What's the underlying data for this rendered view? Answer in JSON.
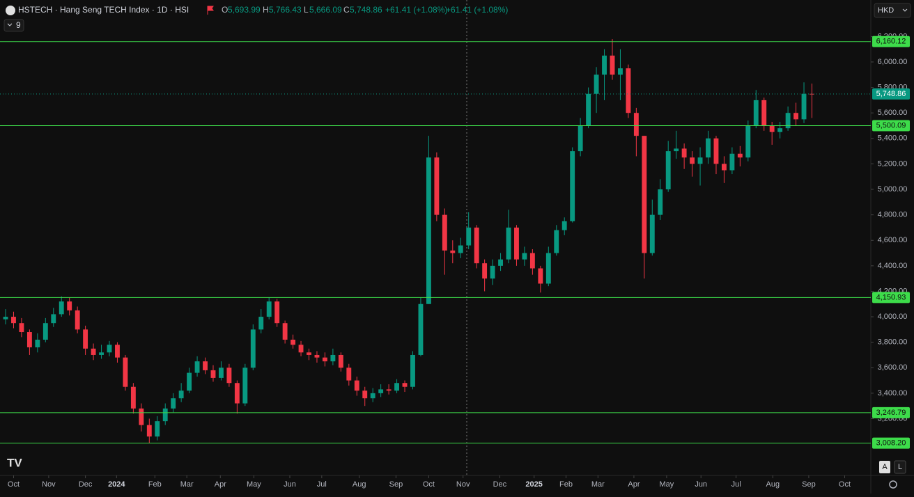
{
  "header": {
    "symbol": "HSTECH · Hang Seng TECH Index · 1D · HSI",
    "open_label": "O",
    "open": "5,693.99",
    "high_label": "H",
    "high": "5,766.43",
    "low_label": "L",
    "low": "5,666.09",
    "close_label": "C",
    "close": "5,748.86",
    "change": "+61.41 (+1.08%)",
    "change_repeat": "+61.41 (+1.08%)",
    "indicator_count": "9",
    "currency": "HKD"
  },
  "buttons": {
    "auto": "A",
    "log": "L"
  },
  "chart_data": {
    "type": "candlestick",
    "x": [
      0,
      1,
      2,
      3,
      4,
      5,
      6,
      7,
      8,
      9,
      10,
      11,
      12,
      13,
      14,
      15,
      16,
      17,
      18,
      19,
      20,
      21,
      22,
      23,
      24,
      25,
      26,
      27,
      28,
      29,
      30,
      31,
      32,
      33,
      34,
      35,
      36,
      37,
      38,
      39,
      40,
      41,
      42,
      43,
      44,
      45,
      46,
      47,
      48,
      49,
      50,
      51,
      52,
      53,
      54,
      55,
      56,
      57,
      58,
      59,
      60,
      61,
      62,
      63,
      64,
      65,
      66,
      67,
      68,
      69,
      70,
      71,
      72,
      73,
      74,
      75,
      76,
      77,
      78,
      79,
      80,
      81,
      82,
      83,
      84,
      85,
      86,
      87,
      88,
      89,
      90,
      91,
      92,
      93,
      94,
      95,
      96,
      97,
      98,
      99,
      100,
      101
    ],
    "open": [
      3980,
      4000,
      3950,
      3880,
      3760,
      3820,
      3950,
      4020,
      4120,
      4050,
      3900,
      3750,
      3700,
      3720,
      3780,
      3680,
      3450,
      3280,
      3150,
      3060,
      3180,
      3280,
      3360,
      3420,
      3560,
      3650,
      3580,
      3520,
      3600,
      3480,
      3320,
      3600,
      3900,
      4000,
      4120,
      3950,
      3820,
      3780,
      3720,
      3700,
      3680,
      3650,
      3700,
      3600,
      3500,
      3420,
      3360,
      3400,
      3430,
      3420,
      3480,
      3450,
      3700,
      4100,
      5250,
      4800,
      4520,
      4500,
      4560,
      4700,
      4420,
      4300,
      4400,
      4450,
      4700,
      4450,
      4500,
      4380,
      4260,
      4500,
      4680,
      4750,
      5300,
      5500,
      5750,
      5900,
      6050,
      5900,
      5950,
      5600,
      5420,
      4500,
      4800,
      5000,
      5300,
      5320,
      5250,
      5200,
      5250,
      5400,
      5200,
      5150,
      5280,
      5250,
      5500,
      5700,
      5500,
      5450,
      5480,
      5600,
      5550,
      5750
    ],
    "high": [
      4060,
      4040,
      3990,
      3900,
      3870,
      3990,
      4070,
      4160,
      4150,
      4080,
      3930,
      3790,
      3780,
      3810,
      3800,
      3700,
      3480,
      3320,
      3200,
      3220,
      3320,
      3400,
      3480,
      3600,
      3690,
      3680,
      3620,
      3650,
      3630,
      3500,
      3630,
      3940,
      4060,
      4150,
      4140,
      3970,
      3860,
      3810,
      3750,
      3730,
      3720,
      3750,
      3720,
      3630,
      3530,
      3450,
      3440,
      3470,
      3470,
      3510,
      3500,
      3730,
      4150,
      5420,
      5290,
      4850,
      4600,
      4620,
      4820,
      4720,
      4450,
      4450,
      4500,
      4840,
      4720,
      4550,
      4530,
      4400,
      4550,
      4720,
      4780,
      5330,
      5560,
      5800,
      5960,
      6100,
      6180,
      6100,
      5980,
      5640,
      5420,
      4920,
      5080,
      5380,
      5460,
      5360,
      5300,
      5330,
      5460,
      5420,
      5260,
      5330,
      5340,
      5540,
      5780,
      5720,
      5530,
      5530,
      5650,
      5680,
      5840,
      5830
    ],
    "low": [
      3940,
      3910,
      3840,
      3700,
      3720,
      3800,
      3920,
      4000,
      4010,
      3870,
      3700,
      3660,
      3670,
      3690,
      3640,
      3420,
      3240,
      3100,
      3010,
      3030,
      3150,
      3250,
      3330,
      3400,
      3530,
      3550,
      3490,
      3500,
      3450,
      3240,
      3300,
      3580,
      3870,
      3980,
      3920,
      3790,
      3750,
      3690,
      3660,
      3640,
      3610,
      3620,
      3570,
      3460,
      3380,
      3300,
      3330,
      3370,
      3390,
      3400,
      3410,
      3430,
      3690,
      4100,
      4750,
      4330,
      4420,
      4460,
      4530,
      4380,
      4200,
      4250,
      4360,
      4420,
      4400,
      4400,
      4330,
      4190,
      4240,
      4480,
      4640,
      4740,
      5260,
      5480,
      5600,
      5700,
      5860,
      5700,
      5560,
      5260,
      4300,
      4480,
      4760,
      4980,
      5240,
      5160,
      5100,
      5030,
      5200,
      5120,
      5050,
      5120,
      5180,
      5220,
      5480,
      5460,
      5350,
      5400,
      5460,
      5500,
      5520,
      5560
    ],
    "close": [
      4000,
      3950,
      3880,
      3760,
      3820,
      3950,
      4020,
      4120,
      4050,
      3900,
      3750,
      3700,
      3720,
      3780,
      3680,
      3450,
      3280,
      3150,
      3060,
      3180,
      3280,
      3360,
      3420,
      3560,
      3650,
      3580,
      3520,
      3600,
      3480,
      3320,
      3600,
      3900,
      4000,
      4120,
      3950,
      3820,
      3780,
      3720,
      3700,
      3680,
      3650,
      3700,
      3600,
      3500,
      3420,
      3360,
      3400,
      3430,
      3420,
      3480,
      3450,
      3700,
      4100,
      5250,
      4800,
      4520,
      4500,
      4560,
      4700,
      4420,
      4300,
      4400,
      4450,
      4700,
      4450,
      4500,
      4380,
      4260,
      4500,
      4680,
      4750,
      5300,
      5500,
      5750,
      5900,
      6050,
      5900,
      5950,
      5600,
      5420,
      4500,
      4800,
      5000,
      5300,
      5320,
      5250,
      5200,
      5250,
      5400,
      5200,
      5150,
      5280,
      5250,
      5500,
      5700,
      5500,
      5450,
      5480,
      5600,
      5550,
      5750,
      5748.86
    ],
    "up_color": "#089981",
    "down_color": "#f23645",
    "xlim": [
      -0.7,
      108.2
    ],
    "xticks": [
      {
        "value": 1,
        "label": "Oct"
      },
      {
        "value": 5.4,
        "label": "Nov"
      },
      {
        "value": 10,
        "label": "Dec"
      },
      {
        "value": 13.9,
        "label": "2024"
      },
      {
        "value": 18.7,
        "label": "Feb"
      },
      {
        "value": 22.7,
        "label": "Mar"
      },
      {
        "value": 26.9,
        "label": "Apr"
      },
      {
        "value": 31.1,
        "label": "May"
      },
      {
        "value": 35.6,
        "label": "Jun"
      },
      {
        "value": 39.6,
        "label": "Jul"
      },
      {
        "value": 44.3,
        "label": "Aug"
      },
      {
        "value": 48.9,
        "label": "Sep"
      },
      {
        "value": 53,
        "label": "Oct"
      },
      {
        "value": 57.3,
        "label": "Nov"
      },
      {
        "value": 61.9,
        "label": "Dec"
      },
      {
        "value": 66.2,
        "label": "2025"
      },
      {
        "value": 70.2,
        "label": "Feb"
      },
      {
        "value": 74.2,
        "label": "Mar"
      },
      {
        "value": 78.7,
        "label": "Apr"
      },
      {
        "value": 82.8,
        "label": "May"
      },
      {
        "value": 87.1,
        "label": "Jun"
      },
      {
        "value": 91.5,
        "label": "Jul"
      },
      {
        "value": 96.1,
        "label": "Aug"
      },
      {
        "value": 100.6,
        "label": "Sep"
      },
      {
        "value": 105.1,
        "label": "Oct"
      }
    ],
    "ylim": [
      2771,
      6224
    ],
    "yticks": [
      {
        "value": 3200,
        "label": "3,200.00"
      },
      {
        "value": 3400,
        "label": "3,400.00"
      },
      {
        "value": 3600,
        "label": "3,600.00"
      },
      {
        "value": 3800,
        "label": "3,800.00"
      },
      {
        "value": 4000,
        "label": "4,000.00"
      },
      {
        "value": 4200,
        "label": "4,200.00"
      },
      {
        "value": 4400,
        "label": "4,400.00"
      },
      {
        "value": 4600,
        "label": "4,600.00"
      },
      {
        "value": 4800,
        "label": "4,800.00"
      },
      {
        "value": 5000,
        "label": "5,000.00"
      },
      {
        "value": 5200,
        "label": "5,200.00"
      },
      {
        "value": 5400,
        "label": "5,400.00"
      },
      {
        "value": 5600,
        "label": "5,600.00"
      },
      {
        "value": 5800,
        "label": "5,800.00"
      },
      {
        "value": 6000,
        "label": "6,000.00"
      },
      {
        "value": 6200,
        "label": "6,200.00"
      }
    ],
    "levels": [
      {
        "value": 6160.12,
        "label": "6,160.12"
      },
      {
        "value": 5500.09,
        "label": "5,500.09"
      },
      {
        "value": 4150.93,
        "label": "4,150.93"
      },
      {
        "value": 3246.79,
        "label": "3,246.79"
      },
      {
        "value": 3008.2,
        "label": "3,008.20"
      }
    ],
    "level_color": "#3ddc4a",
    "last_price": {
      "value": 5748.86,
      "label": "5,748.86"
    }
  }
}
